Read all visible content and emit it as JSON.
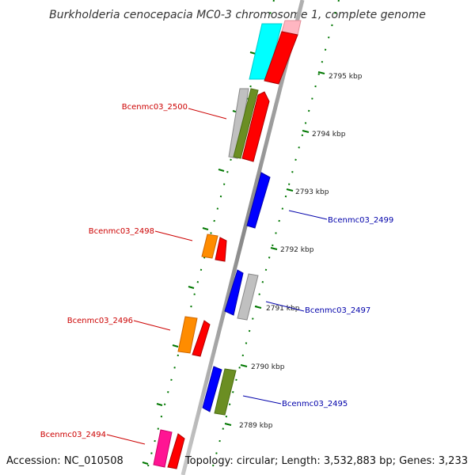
{
  "title": "Burkholderia cenocepacia MC0-3 chromosome 1, complete genome",
  "footer": {
    "accession": "Accession: NC_010508",
    "summary": "Topology: circular; Length: 3,532,883 bp; Genes: 3,233"
  },
  "ticks": [
    "2795 kbp",
    "2794 kbp",
    "2793 kbp",
    "2792 kbp",
    "2791 kbp",
    "2790 kbp",
    "2789 kbp"
  ],
  "gene_labels": {
    "g2500": "Bcenmc03_2500",
    "g2499": "Bcenmc03_2499",
    "g2498": "Bcenmc03_2498",
    "g2497": "Bcenmc03_2497",
    "g2496": "Bcenmc03_2496",
    "g2495": "Bcenmc03_2495",
    "g2494": "Bcenmc03_2494"
  },
  "colors": {
    "reverse_label": "#cc0000",
    "forward_label": "#0000aa",
    "red": "#ff0000",
    "blue": "#0000ff",
    "orange": "#ff8c00",
    "olive": "#6b8e23",
    "gray": "#c0c0c0",
    "cyan": "#00ffff",
    "pink": "#ffb6c1",
    "magenta": "#ff1493",
    "backbone": "#909090",
    "tick": "#007700"
  }
}
